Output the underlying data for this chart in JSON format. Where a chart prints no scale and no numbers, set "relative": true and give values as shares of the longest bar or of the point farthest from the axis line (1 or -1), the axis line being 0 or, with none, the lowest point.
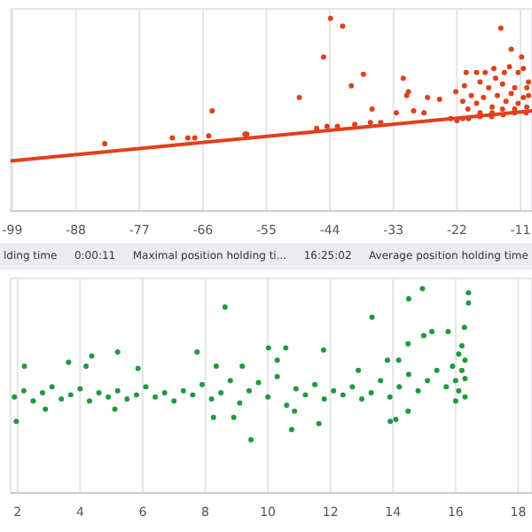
{
  "chart_data": [
    {
      "type": "scatter",
      "relative": true,
      "grid": true,
      "legend": false,
      "xlim": [
        -99.3,
        -9
      ],
      "xticks": [
        -99,
        -88,
        -77,
        -66,
        -55,
        -44,
        -33,
        -22,
        -11
      ],
      "annotations": [
        "lding time",
        "0:00:11",
        "Maximal position holding ti...",
        "16:25:02",
        "Average position holding time"
      ],
      "series": [
        {
          "type": "scatter",
          "marker": "circle",
          "color": "#e0401a",
          "x": [
            -43.9,
            -41.8,
            -45.1,
            -14.4,
            -12.6,
            -10.8,
            -38.2,
            -40.3,
            -31.3,
            -30.4,
            -30.7,
            -36.7,
            -49.3,
            -64.4,
            -83.0,
            -71.3,
            -68.6,
            -67.4,
            -65.0,
            -58.7,
            -58.4,
            -46.3,
            -44.5,
            -42.7,
            -39.7,
            -37.0,
            -35.2,
            -32.5,
            -29.5,
            -27.1,
            -25.0,
            -27.7,
            -23.1,
            -21.0,
            -22.2,
            -20.7,
            -20.4,
            -18.6,
            -17.1,
            -15.6,
            -15.3,
            -13.8,
            -12.9,
            -11.4,
            -10.5,
            -9.6,
            -18.0,
            -16.5,
            -14.1,
            -12.0,
            -9.9,
            -21.0,
            -19.5,
            -18.6,
            -17.4,
            -15.9,
            -15.0,
            -13.5,
            -12.6,
            -11.4,
            -10.5,
            -9.6,
            -20.1,
            -18.0,
            -15.9,
            -14.1,
            -12.0,
            -9.9,
            -22.0,
            -20.0,
            -18.0,
            -16.0,
            -14.0,
            -12.0,
            -10.0
          ],
          "values": [
            1.0,
            0.96,
            0.8,
            0.95,
            0.84,
            0.8,
            0.71,
            0.65,
            0.69,
            0.62,
            0.6,
            0.53,
            0.59,
            0.52,
            0.35,
            0.38,
            0.38,
            0.38,
            0.39,
            0.4,
            0.4,
            0.43,
            0.44,
            0.44,
            0.45,
            0.46,
            0.46,
            0.51,
            0.52,
            0.59,
            0.58,
            0.51,
            0.48,
            0.48,
            0.62,
            0.65,
            0.72,
            0.72,
            0.72,
            0.74,
            0.69,
            0.72,
            0.75,
            0.72,
            0.74,
            0.67,
            0.67,
            0.64,
            0.66,
            0.64,
            0.64,
            0.57,
            0.6,
            0.56,
            0.59,
            0.54,
            0.6,
            0.57,
            0.61,
            0.56,
            0.59,
            0.6,
            0.53,
            0.51,
            0.51,
            0.53,
            0.53,
            0.54,
            0.47,
            0.48,
            0.49,
            0.49,
            0.5,
            0.51,
            0.51
          ]
        },
        {
          "type": "line",
          "color": "#e0401a",
          "x": [
            -99.3,
            -9
          ],
          "values": [
            0.26,
            0.52
          ]
        }
      ]
    },
    {
      "type": "scatter",
      "relative": true,
      "grid": true,
      "legend": false,
      "xlim": [
        1.78,
        18.44
      ],
      "xticks": [
        2,
        4,
        6,
        8,
        10,
        12,
        14,
        16,
        18
      ],
      "series": [
        {
          "type": "scatter",
          "marker": "circle",
          "color": "#1e9a3c",
          "x": [
            14.94,
            14.5,
            16.41,
            16.41,
            8.63,
            13.33,
            16.28,
            14.98,
            15.24,
            15.76,
            14.48,
            3.63,
            4.37,
            5.2,
            7.74,
            10.02,
            10.57,
            11.78,
            2.22,
            1.96,
            9.46,
            10.76,
            11.63,
            13.91,
            14.09,
            14.48,
            8.26,
            8.91,
            2.89,
            5.11,
            10.85,
            5.85,
            8.35,
            9.18,
            10.3,
            4.19,
            12.89,
            13.82,
            14.18,
            1.9,
            2.2,
            2.5,
            2.8,
            3.1,
            3.4,
            3.7,
            4.0,
            4.3,
            4.6,
            4.9,
            5.2,
            5.5,
            5.8,
            6.1,
            6.4,
            6.7,
            7.0,
            7.3,
            7.6,
            7.9,
            8.2,
            8.5,
            8.8,
            9.1,
            9.4,
            9.7,
            10.0,
            10.3,
            10.6,
            10.9,
            11.2,
            11.5,
            11.8,
            12.1,
            12.4,
            12.7,
            13.0,
            13.3,
            13.6,
            13.9,
            14.2,
            14.5,
            14.8,
            15.1,
            15.4,
            15.7,
            15.9,
            16.0,
            16.0,
            16.1,
            16.1,
            16.2,
            16.2,
            16.3,
            16.3,
            16.3
          ],
          "values": [
            1.0,
            0.95,
            0.98,
            0.93,
            0.91,
            0.86,
            0.81,
            0.77,
            0.79,
            0.79,
            0.73,
            0.64,
            0.67,
            0.69,
            0.69,
            0.71,
            0.71,
            0.7,
            0.62,
            0.35,
            0.26,
            0.31,
            0.34,
            0.35,
            0.36,
            0.4,
            0.37,
            0.37,
            0.41,
            0.41,
            0.4,
            0.61,
            0.62,
            0.62,
            0.65,
            0.62,
            0.6,
            0.65,
            0.65,
            0.47,
            0.5,
            0.45,
            0.49,
            0.52,
            0.46,
            0.48,
            0.51,
            0.45,
            0.49,
            0.47,
            0.5,
            0.46,
            0.48,
            0.52,
            0.47,
            0.49,
            0.45,
            0.5,
            0.48,
            0.53,
            0.46,
            0.49,
            0.55,
            0.44,
            0.5,
            0.54,
            0.47,
            0.57,
            0.43,
            0.51,
            0.48,
            0.53,
            0.46,
            0.5,
            0.48,
            0.52,
            0.46,
            0.49,
            0.55,
            0.47,
            0.52,
            0.58,
            0.5,
            0.55,
            0.6,
            0.52,
            0.62,
            0.45,
            0.55,
            0.68,
            0.5,
            0.6,
            0.72,
            0.47,
            0.65,
            0.56
          ]
        }
      ]
    }
  ]
}
